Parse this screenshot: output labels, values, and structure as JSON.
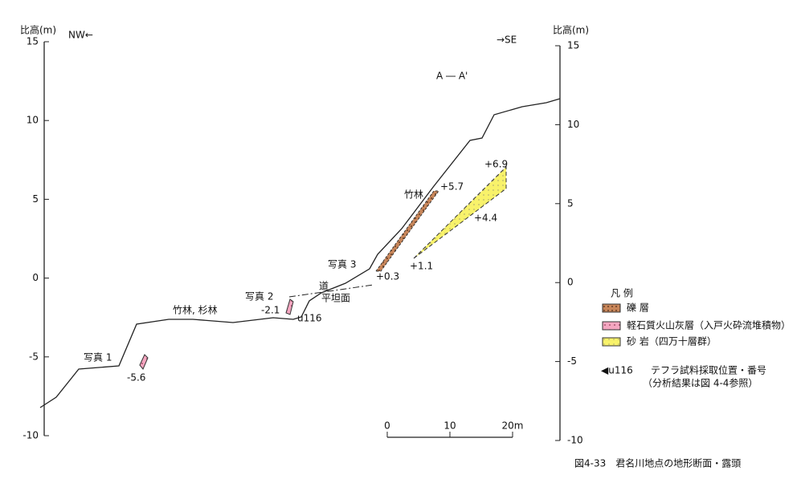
{
  "axes": {
    "left_label": "比高(m)",
    "right_label": "比高(m)",
    "left_ticks": [
      "15",
      "10",
      "5",
      "0",
      "-5",
      "-10"
    ],
    "right_ticks": [
      "15",
      "10",
      "5",
      "0",
      "-5",
      "-10"
    ]
  },
  "directions": {
    "left": "NW←",
    "right": "→SE"
  },
  "section": "A ― A'",
  "labels": {
    "bamboo_cedar": "竹林, 杉林",
    "road": "道",
    "flat": "平坦面",
    "bamboo": "竹林",
    "photo1": "写真 1",
    "photo2": "写真 2",
    "photo3": "写真 3"
  },
  "elevations": {
    "e1": "-5.6",
    "e2": "-2.1",
    "e3": "+0.3",
    "e4": "+1.1",
    "e5": "+5.7",
    "e6": "+6.9",
    "e7": "+4.4",
    "sample": "u116"
  },
  "scale": {
    "ticks": [
      "0",
      "10",
      "20m"
    ]
  },
  "legend": {
    "title": "凡 例",
    "items": [
      "礫 層",
      "軽石質火山灰層（入戸火砕流堆積物）",
      "砂 岩（四万十層群）"
    ],
    "sample_mark": "◀u116",
    "sample_text": "テフラ試料採取位置・番号",
    "sample_note": "（分析結果は図 4-4参照）"
  },
  "caption": "図4-33　君名川地点の地形断面・露頭"
}
